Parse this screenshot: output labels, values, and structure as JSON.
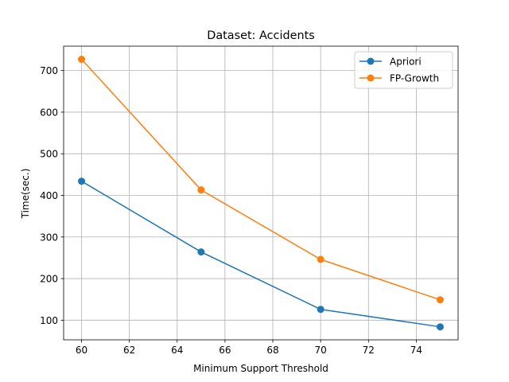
{
  "chart_data": {
    "type": "line",
    "title": "Dataset: Accidents",
    "xlabel": "Minimum Support Threshold",
    "ylabel": "Time(sec.)",
    "xlim": [
      59.25,
      75.75
    ],
    "ylim": [
      52.8,
      758.6
    ],
    "x_ticks": [
      60,
      62,
      64,
      66,
      68,
      70,
      72,
      74
    ],
    "y_ticks": [
      100,
      200,
      300,
      400,
      500,
      600,
      700
    ],
    "grid": true,
    "legend_position": "top-right",
    "x": [
      60,
      65,
      70,
      75
    ],
    "series": [
      {
        "name": "Apriori",
        "color": "#1f77b4",
        "marker": "circle",
        "values": [
          434,
          264,
          126,
          84
        ]
      },
      {
        "name": "FP-Growth",
        "color": "#ff7f0e",
        "marker": "circle",
        "values": [
          727,
          413,
          246,
          149
        ]
      }
    ]
  }
}
